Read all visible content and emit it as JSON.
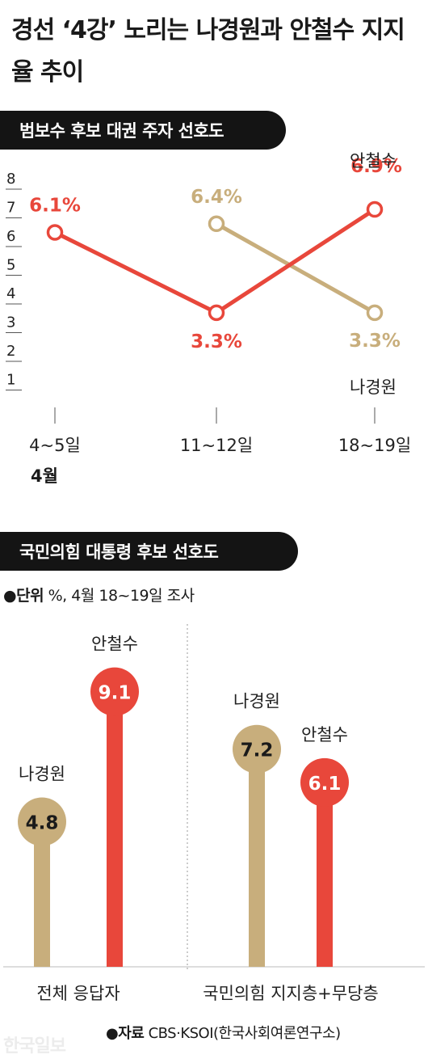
{
  "title": "경선 ‘4강’ 노리는 나경원과 안철수 지지율 추이",
  "source_label": "자료",
  "source_text": "CBS·KSOI(한국사회여론연구소)",
  "logo_text": "한국일보",
  "colors": {
    "red": "#e8473b",
    "gold": "#c8ae7c",
    "dark": "#141414"
  },
  "chart_data": [
    {
      "type": "line",
      "title": "범보수 후보 대권 주자 선호도",
      "categories": [
        "4~5일",
        "11~12일",
        "18~19일"
      ],
      "x_group_label": "4월",
      "y_ticks": [
        "1",
        "2",
        "3",
        "4",
        "5",
        "6",
        "7",
        "8"
      ],
      "ylim": [
        1,
        8
      ],
      "grid": false,
      "series": [
        {
          "name": "안철수",
          "color": "#e8473b",
          "values": [
            6.1,
            3.3,
            6.9
          ],
          "labels": [
            "6.1%",
            "3.3%",
            "6.9%"
          ]
        },
        {
          "name": "나경원",
          "color": "#c8ae7c",
          "values": [
            null,
            6.4,
            3.3
          ],
          "labels": [
            "",
            "6.4%",
            "3.3%"
          ]
        }
      ]
    },
    {
      "type": "bar",
      "title": "국민의힘 대통령 후보 선호도",
      "unit_label": "단위",
      "unit_text": "%, 4월 18~19일 조사",
      "categories": [
        "전체 응답자",
        "국민의힘 지지층+무당층"
      ],
      "series": [
        {
          "name": "나경원",
          "color": "#c8ae7c",
          "values": [
            4.8,
            7.2
          ],
          "labels": [
            "4.8",
            "7.2"
          ]
        },
        {
          "name": "안철수",
          "color": "#e8473b",
          "values": [
            9.1,
            6.1
          ],
          "labels": [
            "9.1",
            "6.1"
          ]
        }
      ]
    }
  ]
}
